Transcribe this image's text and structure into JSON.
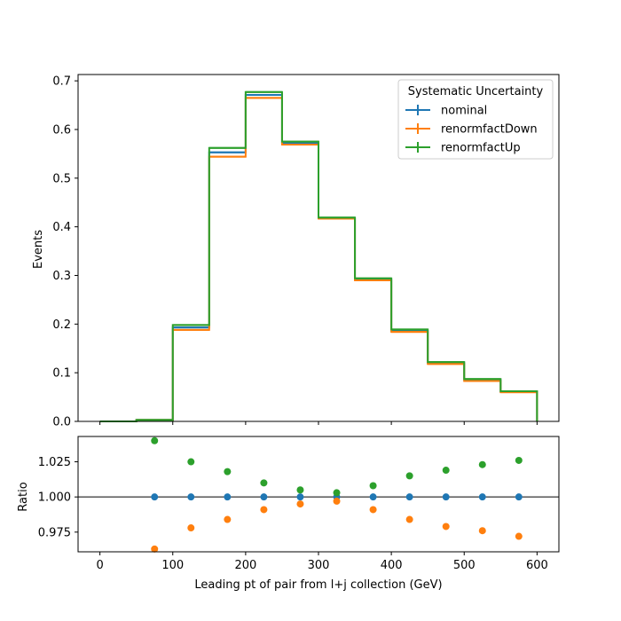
{
  "chart_data": [
    {
      "type": "line",
      "panel": "main",
      "xlabel": "",
      "ylabel": "Events",
      "xlim": [
        -30,
        630
      ],
      "ylim": [
        0,
        0.713
      ],
      "xticks": [
        "0",
        "100",
        "200",
        "300",
        "400",
        "500",
        "600"
      ],
      "yticks": [
        "0.0",
        "0.1",
        "0.2",
        "0.3",
        "0.4",
        "0.5",
        "0.6",
        "0.7"
      ],
      "bin_edges": [
        0,
        50,
        100,
        150,
        200,
        250,
        300,
        350,
        400,
        450,
        500,
        550,
        600
      ],
      "legend": {
        "title": "Systematic Uncertainty",
        "placement": "top-right"
      },
      "series": [
        {
          "name": "nominal",
          "color": "#1f77b4",
          "values": [
            0.0,
            0.003,
            0.193,
            0.553,
            0.671,
            0.572,
            0.418,
            0.292,
            0.186,
            0.12,
            0.085,
            0.061
          ]
        },
        {
          "name": "renormfactDown",
          "color": "#ff7f0e",
          "values": [
            0.0,
            0.003,
            0.188,
            0.544,
            0.665,
            0.569,
            0.417,
            0.29,
            0.184,
            0.118,
            0.083,
            0.06
          ]
        },
        {
          "name": "renormfactUp",
          "color": "#2ca02c",
          "values": [
            0.0,
            0.003,
            0.198,
            0.562,
            0.677,
            0.575,
            0.419,
            0.294,
            0.189,
            0.122,
            0.087,
            0.062
          ]
        }
      ]
    },
    {
      "type": "scatter",
      "panel": "ratio",
      "xlabel": "Leading pt of pair from l+j collection (GeV)",
      "ylabel": "Ratio",
      "xlim": [
        -30,
        630
      ],
      "ylim": [
        0.961,
        1.043
      ],
      "xticks": [
        "0",
        "100",
        "200",
        "300",
        "400",
        "500",
        "600"
      ],
      "yticks": [
        "0.975",
        "1.000",
        "1.025"
      ],
      "reference_line": 1.0,
      "x": [
        75,
        125,
        175,
        225,
        275,
        325,
        375,
        425,
        475,
        525,
        575
      ],
      "series": [
        {
          "name": "nominal",
          "color": "#1f77b4",
          "values": [
            1.0,
            1.0,
            1.0,
            1.0,
            1.0,
            1.0,
            1.0,
            1.0,
            1.0,
            1.0,
            1.0
          ]
        },
        {
          "name": "renormfactDown",
          "color": "#ff7f0e",
          "values": [
            0.963,
            0.978,
            0.984,
            0.991,
            0.995,
            0.997,
            0.991,
            0.984,
            0.979,
            0.976,
            0.972
          ]
        },
        {
          "name": "renormfactUp",
          "color": "#2ca02c",
          "values": [
            1.04,
            1.025,
            1.018,
            1.01,
            1.005,
            1.003,
            1.008,
            1.015,
            1.019,
            1.023,
            1.026
          ]
        }
      ]
    }
  ]
}
